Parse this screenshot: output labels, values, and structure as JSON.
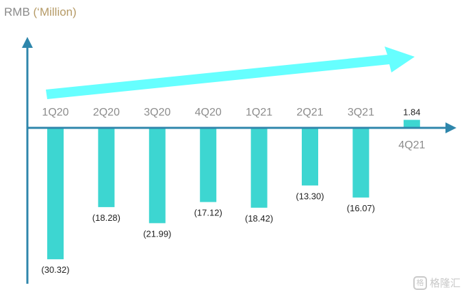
{
  "chart_data": {
    "type": "bar",
    "y_axis_title": "RMB",
    "y_axis_unit": "(‘Million)",
    "categories": [
      "1Q20",
      "2Q20",
      "3Q20",
      "4Q20",
      "1Q21",
      "2Q21",
      "3Q21",
      "4Q21"
    ],
    "values": [
      -30.32,
      -18.28,
      -21.99,
      -17.12,
      -18.42,
      -13.3,
      -16.07,
      1.84
    ],
    "data_labels": [
      "(30.32)",
      "(18.28)",
      "(21.99)",
      "(17.12)",
      "(18.42)",
      "(13.30)",
      "(16.07)",
      "1.84"
    ],
    "grid": false,
    "legend": "none",
    "annotation": "upward trend arrow",
    "colors": {
      "bar": "#3dd6d1",
      "axis": "#2e86ab",
      "trend_arrow": "#66ffff",
      "category_label": "#8c8c8c",
      "data_label": "#222222"
    }
  },
  "watermark": {
    "logo": "格",
    "text": "格隆汇"
  }
}
